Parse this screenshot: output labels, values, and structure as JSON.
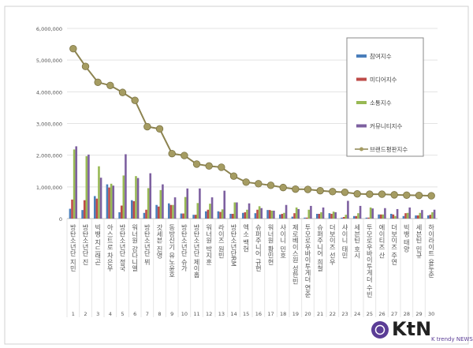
{
  "chart_data": {
    "type": "bar",
    "title": "",
    "xlabel": "",
    "ylabel": "",
    "ylim": [
      0,
      6000000
    ],
    "yticks": [
      "0",
      "1,000,000",
      "2,000,000",
      "3,000,000",
      "4,000,000",
      "5,000,000",
      "6,000,000"
    ],
    "grid": true,
    "legend_position": "top-right",
    "categories": [
      "방탄소년단 지민",
      "방탄소년단 진",
      "빅뱅 지드래곤",
      "아스트로 차은우",
      "방탄소년단 정국",
      "워너원 강다니엘",
      "방탄소년단 뷔",
      "갓세븐 진영",
      "동방신기 유노윤호",
      "방탄소년단 슈가",
      "방탄소년단 제이홉",
      "워너원 박지훈",
      "라이즈 원빈",
      "방탄소년단RM",
      "엑소 백현",
      "슈퍼주니어 규현",
      "워너원 황민현",
      "샤이니 민호",
      "제로베이스원 성한빈",
      "투모로우바이투게더 연준",
      "슈퍼주니어 희철",
      "더보이즈 선우",
      "샤이니 태민",
      "세븐틴 호시",
      "투모로우바이투게더 수빈",
      "에이티즈 산",
      "더보이즈 주연",
      "빅뱅 태양",
      "세븐틴 민규",
      "하이라이트 윤두준"
    ],
    "ranks": [
      "1",
      "2",
      "3",
      "4",
      "5",
      "6",
      "7",
      "8",
      "9",
      "10",
      "11",
      "12",
      "13",
      "14",
      "15",
      "16",
      "17",
      "18",
      "19",
      "20",
      "21",
      "22",
      "23",
      "24",
      "25",
      "26",
      "27",
      "28",
      "29",
      "30"
    ],
    "series": [
      {
        "name": "참여지수",
        "type": "bar",
        "color": "#4a7ebb",
        "values": [
          310000,
          270000,
          710000,
          1080000,
          200000,
          580000,
          180000,
          430000,
          480000,
          160000,
          120000,
          230000,
          230000,
          150000,
          180000,
          170000,
          270000,
          130000,
          60000,
          30000,
          150000,
          170000,
          30000,
          80000,
          30000,
          130000,
          150000,
          80000,
          100000,
          100000
        ]
      },
      {
        "name": "미디어지수",
        "type": "bar",
        "color": "#be4b48",
        "values": [
          600000,
          580000,
          630000,
          980000,
          410000,
          550000,
          280000,
          380000,
          430000,
          160000,
          120000,
          280000,
          210000,
          150000,
          200000,
          280000,
          270000,
          150000,
          170000,
          30000,
          150000,
          150000,
          50000,
          80000,
          30000,
          130000,
          130000,
          170000,
          100000,
          120000
        ]
      },
      {
        "name": "소통지수",
        "type": "bar",
        "color": "#98b954",
        "values": [
          2180000,
          1970000,
          1650000,
          1100000,
          1360000,
          1340000,
          960000,
          900000,
          430000,
          680000,
          490000,
          470000,
          290000,
          510000,
          280000,
          390000,
          250000,
          180000,
          350000,
          280000,
          200000,
          220000,
          120000,
          170000,
          350000,
          130000,
          80000,
          180000,
          180000,
          200000
        ]
      },
      {
        "name": "커뮤니티지수",
        "type": "bar",
        "color": "#7d60a0",
        "values": [
          2280000,
          2020000,
          1290000,
          1040000,
          2030000,
          1280000,
          1430000,
          1080000,
          670000,
          950000,
          950000,
          670000,
          880000,
          510000,
          480000,
          330000,
          250000,
          430000,
          300000,
          400000,
          350000,
          200000,
          560000,
          400000,
          320000,
          330000,
          300000,
          350000,
          270000,
          280000
        ]
      },
      {
        "name": "브랜드평판지수",
        "type": "line",
        "color": "#8c8350",
        "values": [
          5360000,
          4800000,
          4300000,
          4200000,
          3980000,
          3730000,
          2900000,
          2830000,
          2050000,
          1990000,
          1720000,
          1660000,
          1620000,
          1340000,
          1150000,
          1100000,
          1050000,
          980000,
          930000,
          920000,
          880000,
          850000,
          830000,
          780000,
          770000,
          770000,
          750000,
          740000,
          730000,
          720000
        ]
      }
    ]
  },
  "watermark": {
    "logo": "KtN",
    "tagline": "K trendy NEWS"
  }
}
